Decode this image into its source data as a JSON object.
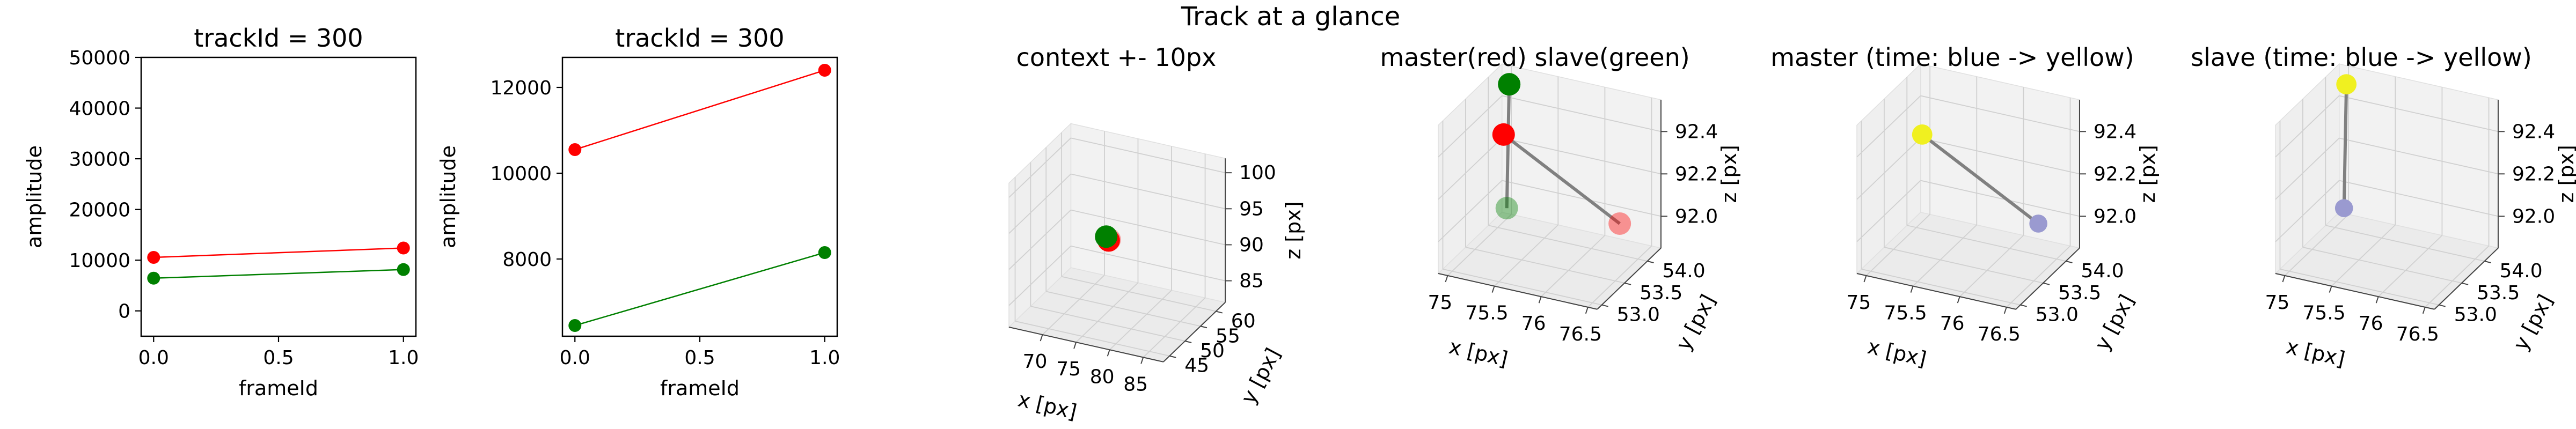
{
  "suptitle": "Track at a glance",
  "colors": {
    "master": "#ff0000",
    "slave": "#008000",
    "master_line": "#ff3333",
    "slave_line": "#2e8b2e",
    "connector": "#808080",
    "time_start": "#9a9ad0",
    "time_end": "#f0f020",
    "pane": "#f2f2f2",
    "grid": "#d0d0d0"
  },
  "chart_data": [
    {
      "type": "line",
      "title": "trackId = 300",
      "xlabel": "frameId",
      "ylabel": "amplitude",
      "xlim": [
        -0.05,
        1.05
      ],
      "ylim": [
        -5000,
        50000
      ],
      "xticks": [
        0.0,
        0.5,
        1.0
      ],
      "xtick_labels": [
        "0.0",
        "0.5",
        "1.0"
      ],
      "yticks": [
        0,
        10000,
        20000,
        30000,
        40000,
        50000
      ],
      "ytick_labels": [
        "0",
        "10000",
        "20000",
        "30000",
        "40000",
        "50000"
      ],
      "series": [
        {
          "color": "master",
          "x": [
            0,
            1
          ],
          "y": [
            10550,
            12400
          ]
        },
        {
          "color": "slave",
          "x": [
            0,
            1
          ],
          "y": [
            6450,
            8150
          ]
        }
      ]
    },
    {
      "type": "line",
      "title": "trackId = 300",
      "xlabel": "frameId",
      "ylabel": "amplitude",
      "xlim": [
        -0.05,
        1.05
      ],
      "ylim": [
        6200,
        12700
      ],
      "xticks": [
        0.0,
        0.5,
        1.0
      ],
      "xtick_labels": [
        "0.0",
        "0.5",
        "1.0"
      ],
      "yticks": [
        8000,
        10000,
        12000
      ],
      "ytick_labels": [
        "8000",
        "10000",
        "12000"
      ],
      "series": [
        {
          "color": "master",
          "x": [
            0,
            1
          ],
          "y": [
            10550,
            12400
          ]
        },
        {
          "color": "slave",
          "x": [
            0,
            1
          ],
          "y": [
            6450,
            8150
          ]
        }
      ]
    },
    {
      "type": "scatter",
      "title": "context +- 10px",
      "xlabel": "x [px]",
      "ylabel": "y [px]",
      "zlabel": "z [px]",
      "xlim": [
        65,
        88
      ],
      "ylim": [
        43,
        63
      ],
      "zlim": [
        82,
        102
      ],
      "xticks": [
        70,
        75,
        80,
        85
      ],
      "yticks": [
        45,
        50,
        55,
        60
      ],
      "zticks": [
        85,
        90,
        95,
        100
      ],
      "points": [
        {
          "x": 75.3,
          "y": 53.2,
          "z": 92.1,
          "color": "master",
          "alpha": 0.35,
          "size": 1.0
        },
        {
          "x": 75.2,
          "y": 53.1,
          "z": 92.0,
          "color": "master",
          "alpha": 1.0,
          "size": 1.0
        },
        {
          "x": 74.6,
          "y": 53.6,
          "z": 92.2,
          "color": "slave",
          "alpha": 1.0,
          "size": 1.0
        }
      ],
      "lines": []
    },
    {
      "type": "scatter",
      "title": "master(red) slave(green)",
      "xlabel": "x [px]",
      "ylabel": "y [px]",
      "zlabel": "z [px]",
      "xlim": [
        74.9,
        76.6
      ],
      "ylim": [
        52.9,
        54.3
      ],
      "zlim": [
        91.85,
        92.55
      ],
      "xticks": [
        75.0,
        75.5,
        76.0,
        76.5
      ],
      "yticks": [
        53.0,
        53.5,
        54.0
      ],
      "zticks": [
        92.0,
        92.2,
        92.4
      ],
      "points": [
        {
          "x": 75.0,
          "y": 54.2,
          "z": 91.9,
          "color": "slave",
          "alpha": 0.4,
          "size": 1.0
        },
        {
          "x": 75.05,
          "y": 54.15,
          "z": 92.5,
          "color": "slave",
          "alpha": 1.0,
          "size": 1.0
        },
        {
          "x": 76.5,
          "y": 53.6,
          "z": 92.1,
          "color": "master",
          "alpha": 0.4,
          "size": 1.0
        },
        {
          "x": 75.55,
          "y": 53.0,
          "z": 92.55,
          "color": "master",
          "alpha": 1.0,
          "size": 1.0
        }
      ],
      "lines": [
        {
          "from": [
            75.0,
            54.2,
            91.9
          ],
          "to": [
            75.05,
            54.15,
            92.5
          ],
          "color": "connector"
        },
        {
          "from": [
            76.5,
            53.6,
            92.1
          ],
          "to": [
            75.55,
            53.0,
            92.55
          ],
          "color": "connector"
        }
      ]
    },
    {
      "type": "scatter",
      "title": "master (time: blue -> yellow)",
      "xlabel": "x [px]",
      "ylabel": "y [px]",
      "zlabel": "z [px]",
      "xlim": [
        74.9,
        76.6
      ],
      "ylim": [
        52.9,
        54.3
      ],
      "zlim": [
        91.85,
        92.55
      ],
      "xticks": [
        75.0,
        75.5,
        76.0,
        76.5
      ],
      "yticks": [
        53.0,
        53.5,
        54.0
      ],
      "zticks": [
        92.0,
        92.2,
        92.4
      ],
      "points": [
        {
          "x": 76.5,
          "y": 53.6,
          "z": 92.1,
          "color": "time_start",
          "alpha": 1.0,
          "size": 0.8
        },
        {
          "x": 75.55,
          "y": 53.0,
          "z": 92.55,
          "color": "time_end",
          "alpha": 1.0,
          "size": 0.9
        }
      ],
      "lines": [
        {
          "from": [
            76.5,
            53.6,
            92.1
          ],
          "to": [
            75.55,
            53.0,
            92.55
          ],
          "color": "connector"
        }
      ]
    },
    {
      "type": "scatter",
      "title": "slave (time: blue -> yellow)",
      "xlabel": "x [px]",
      "ylabel": "y [px]",
      "zlabel": "z [px]",
      "xlim": [
        74.9,
        76.6
      ],
      "ylim": [
        52.9,
        54.3
      ],
      "zlim": [
        91.85,
        92.55
      ],
      "xticks": [
        75.0,
        75.5,
        76.0,
        76.5
      ],
      "yticks": [
        53.0,
        53.5,
        54.0
      ],
      "zticks": [
        92.0,
        92.2,
        92.4
      ],
      "points": [
        {
          "x": 75.0,
          "y": 54.2,
          "z": 91.9,
          "color": "time_start",
          "alpha": 1.0,
          "size": 0.8
        },
        {
          "x": 75.05,
          "y": 54.15,
          "z": 92.5,
          "color": "time_end",
          "alpha": 1.0,
          "size": 0.9
        }
      ],
      "lines": [
        {
          "from": [
            75.0,
            54.2,
            91.9
          ],
          "to": [
            75.05,
            54.15,
            92.5
          ],
          "color": "connector"
        }
      ]
    }
  ]
}
